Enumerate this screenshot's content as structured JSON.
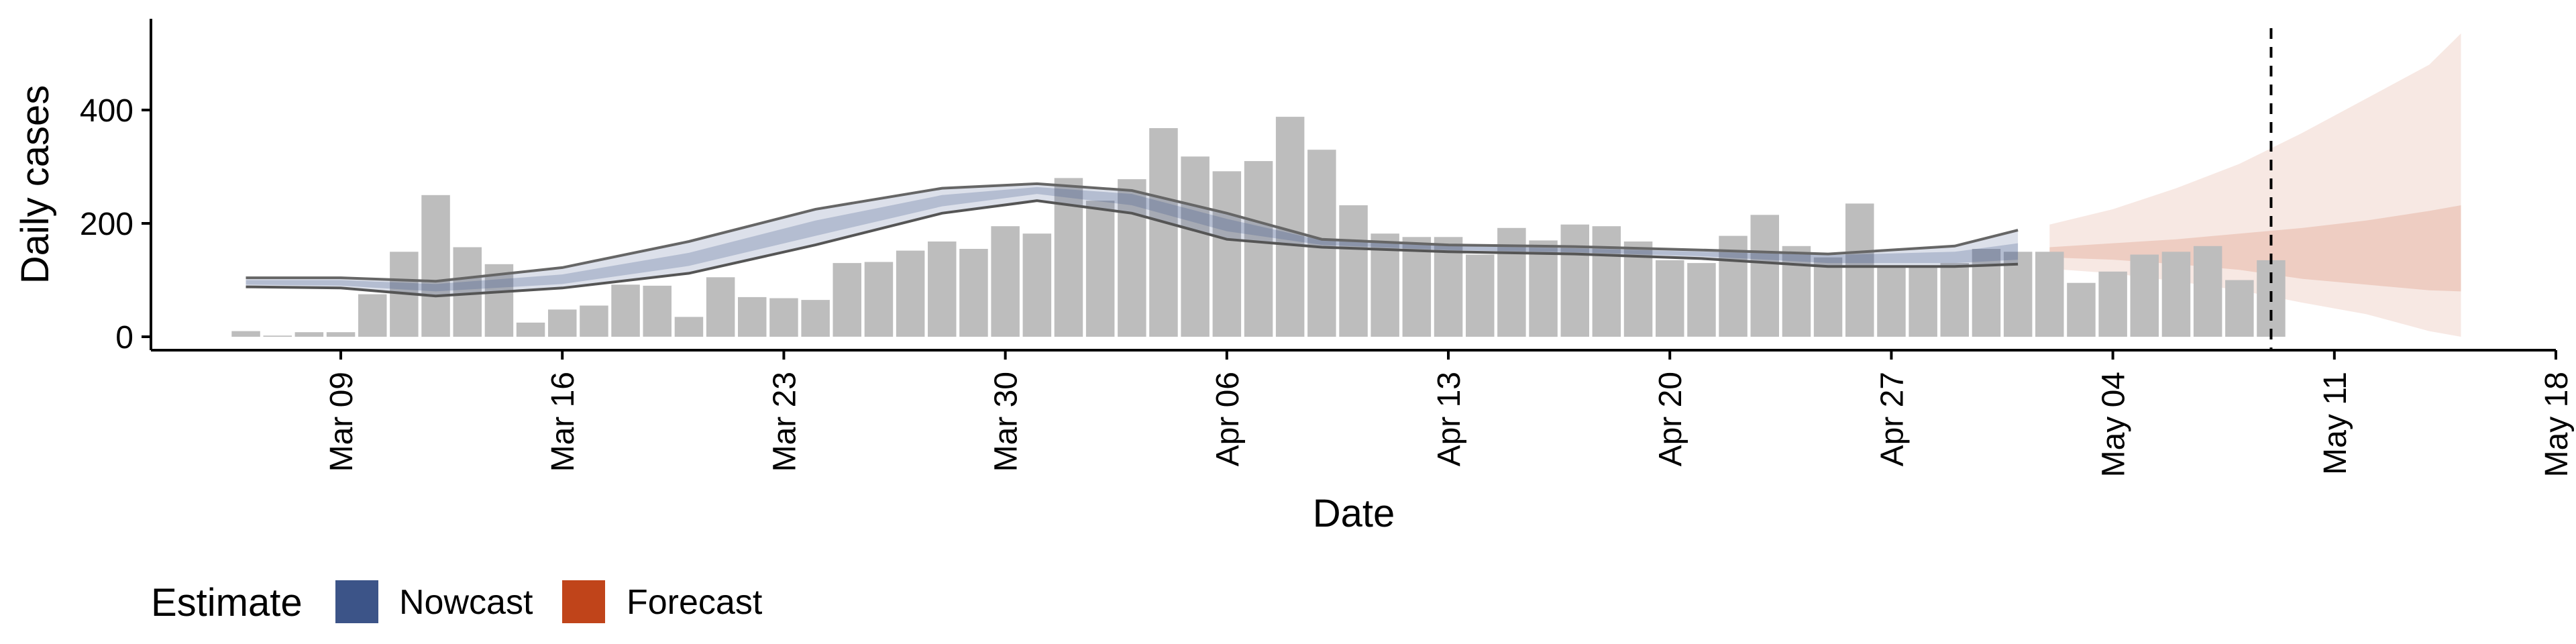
{
  "chart_data": {
    "type": "bar",
    "ylabel": "Daily cases",
    "xlabel": "Date",
    "ylim": [
      0,
      550
    ],
    "xlim": [
      "2020-03-03",
      "2020-05-18"
    ],
    "y_ticks": [
      0,
      200,
      400
    ],
    "x_ticks": [
      {
        "date": "2020-03-09",
        "label": "Mar 09"
      },
      {
        "date": "2020-03-16",
        "label": "Mar 16"
      },
      {
        "date": "2020-03-23",
        "label": "Mar 23"
      },
      {
        "date": "2020-03-30",
        "label": "Mar 30"
      },
      {
        "date": "2020-04-06",
        "label": "Apr 06"
      },
      {
        "date": "2020-04-13",
        "label": "Apr 13"
      },
      {
        "date": "2020-04-20",
        "label": "Apr 20"
      },
      {
        "date": "2020-04-27",
        "label": "Apr 27"
      },
      {
        "date": "2020-05-04",
        "label": "May 04"
      },
      {
        "date": "2020-05-11",
        "label": "May 11"
      },
      {
        "date": "2020-05-18",
        "label": "May 18"
      }
    ],
    "bars_start_date": "2020-03-06",
    "bar_values": [
      10,
      2,
      8,
      8,
      75,
      150,
      250,
      158,
      128,
      25,
      48,
      55,
      92,
      90,
      35,
      105,
      70,
      68,
      65,
      130,
      132,
      152,
      168,
      155,
      195,
      182,
      280,
      240,
      278,
      368,
      318,
      292,
      310,
      388,
      330,
      232,
      182,
      176,
      176,
      145,
      192,
      170,
      198,
      195,
      168,
      135,
      130,
      178,
      215,
      160,
      140,
      235,
      125,
      125,
      130,
      155,
      150,
      150,
      95,
      115,
      145,
      150,
      160,
      100,
      135
    ],
    "vline_date": "2020-05-09",
    "series": [
      {
        "name": "Nowcast",
        "color": "#3c5488",
        "dates": [
          "2020-03-06",
          "2020-03-09",
          "2020-03-12",
          "2020-03-16",
          "2020-03-20",
          "2020-03-24",
          "2020-03-28",
          "2020-03-31",
          "2020-04-03",
          "2020-04-06",
          "2020-04-09",
          "2020-04-13",
          "2020-04-17",
          "2020-04-21",
          "2020-04-25",
          "2020-04-29",
          "2020-05-01"
        ],
        "lower_90": [
          88,
          86,
          72,
          86,
          112,
          162,
          218,
          240,
          218,
          172,
          158,
          150,
          146,
          138,
          124,
          124,
          128
        ],
        "lower_50": [
          92,
          90,
          80,
          93,
          125,
          178,
          230,
          252,
          232,
          186,
          162,
          153,
          149,
          142,
          130,
          130,
          136
        ],
        "median": [
          96,
          95,
          86,
          100,
          135,
          190,
          240,
          258,
          245,
          195,
          165,
          156,
          152,
          146,
          136,
          138,
          148
        ],
        "upper_50": [
          100,
          100,
          93,
          110,
          148,
          205,
          250,
          264,
          252,
          208,
          170,
          160,
          156,
          150,
          144,
          150,
          165
        ],
        "upper_90": [
          104,
          104,
          98,
          122,
          168,
          225,
          262,
          270,
          258,
          218,
          172,
          162,
          159,
          153,
          146,
          160,
          188
        ]
      },
      {
        "name": "Forecast",
        "color": "#c0441a",
        "dates": [
          "2020-05-02",
          "2020-05-04",
          "2020-05-06",
          "2020-05-08",
          "2020-05-10",
          "2020-05-12",
          "2020-05-14",
          "2020-05-15"
        ],
        "lower_90": [
          120,
          112,
          98,
          82,
          60,
          40,
          10,
          0
        ],
        "lower_50": [
          140,
          136,
          128,
          118,
          102,
          92,
          82,
          80
        ],
        "upper_50": [
          158,
          165,
          172,
          182,
          192,
          205,
          222,
          232
        ],
        "upper_90": [
          198,
          225,
          262,
          305,
          360,
          420,
          480,
          535
        ]
      }
    ],
    "legend": {
      "title": "Estimate",
      "position": "bottom-left",
      "entries": [
        {
          "label": "Nowcast",
          "color": "#3c5488"
        },
        {
          "label": "Forecast",
          "color": "#c0441a"
        }
      ]
    },
    "bar_color": "#bdbdbd",
    "grid": false
  }
}
